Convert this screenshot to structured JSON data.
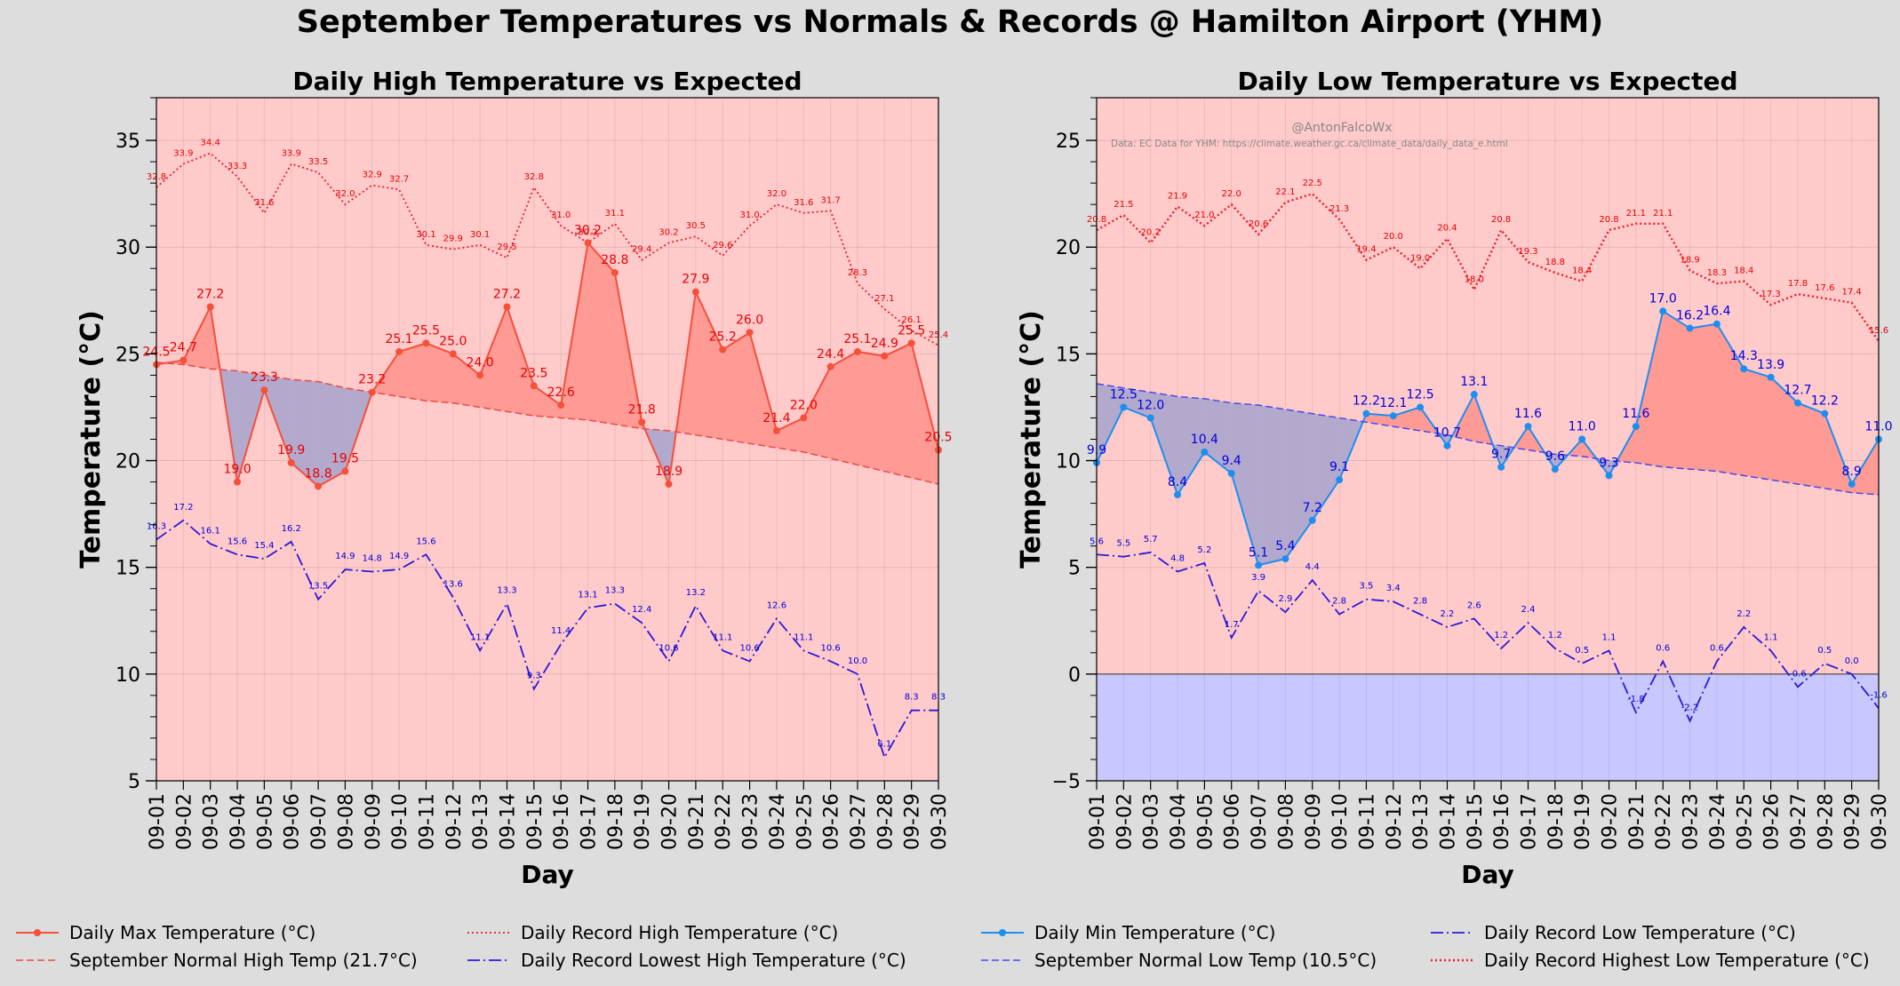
{
  "figure": {
    "suptitle": "September Temperatures vs Normals & Records @ Hamilton Airport (YHM)",
    "watermark": "@AntonFalcoWx",
    "source_note": "Data: EC Data for YHM: https://climate.weather.gc.ca/climate_data/daily_data_e.html"
  },
  "colors": {
    "background": "#dddddd",
    "plot_bg": "#ffcaca",
    "max_line": "#f4503a",
    "min_line": "#1e8ef0",
    "record_high": "#e8202a",
    "record_low": "#2a1ad8",
    "normal_high": "#ea4a4a",
    "normal_low": "#4a4ae8",
    "fill_above": "#ff9a95",
    "fill_below": "#b3a9cd",
    "below_zero": "#c8c8ff",
    "label_red": "#e80000",
    "label_blue": "#0000dd"
  },
  "legend": {
    "left": [
      {
        "label": "Daily Max Temperature (°C)",
        "style": "max"
      },
      {
        "label": "Daily Record High Temperature (°C)",
        "style": "rechigh"
      },
      {
        "label": "September Normal High Temp (21.7°C)",
        "style": "normhigh"
      },
      {
        "label": "Daily Record Lowest High Temperature (°C)",
        "style": "reclow"
      }
    ],
    "right": [
      {
        "label": "Daily Min Temperature (°C)",
        "style": "min"
      },
      {
        "label": "Daily Record Low Temperature (°C)",
        "style": "reclow"
      },
      {
        "label": "September Normal Low Temp (10.5°C)",
        "style": "normlow"
      },
      {
        "label": "Daily Record Highest Low Temperature (°C)",
        "style": "rechighlow"
      }
    ]
  },
  "chart_data": [
    {
      "type": "line",
      "title": "Daily High Temperature vs Expected",
      "xlabel": "Day",
      "ylabel": "Temperature (°C)",
      "ylim": [
        5,
        37
      ],
      "yticks": [
        5,
        10,
        15,
        20,
        25,
        30,
        35
      ],
      "categories": [
        "09-01",
        "09-02",
        "09-03",
        "09-04",
        "09-05",
        "09-06",
        "09-07",
        "09-08",
        "09-09",
        "09-10",
        "09-11",
        "09-12",
        "09-13",
        "09-14",
        "09-15",
        "09-16",
        "09-17",
        "09-18",
        "09-19",
        "09-20",
        "09-21",
        "09-22",
        "09-23",
        "09-24",
        "09-25",
        "09-26",
        "09-27",
        "09-28",
        "09-29",
        "09-30"
      ],
      "series": [
        {
          "name": "Daily Max Temperature (°C)",
          "style": "max",
          "values": [
            24.5,
            24.7,
            27.2,
            19.0,
            23.3,
            19.9,
            18.8,
            19.5,
            23.2,
            25.1,
            25.5,
            25.0,
            24.0,
            27.2,
            23.5,
            22.6,
            30.2,
            28.8,
            21.8,
            18.9,
            27.9,
            25.2,
            26.0,
            21.4,
            22.0,
            24.4,
            25.1,
            24.9,
            25.5,
            20.5
          ]
        },
        {
          "name": "Daily Record High Temperature (°C)",
          "style": "rechigh",
          "values": [
            32.8,
            33.9,
            34.4,
            33.3,
            31.6,
            33.9,
            33.5,
            32.0,
            32.9,
            32.7,
            30.1,
            29.9,
            30.1,
            29.5,
            32.8,
            31.0,
            30.2,
            31.1,
            29.4,
            30.2,
            30.5,
            29.6,
            31.0,
            32.0,
            31.6,
            31.7,
            28.3,
            27.1,
            26.1,
            25.4
          ]
        },
        {
          "name": "September Normal High Temp (21.7°C)",
          "style": "normhigh",
          "values": [
            24.6,
            24.5,
            24.3,
            24.2,
            24.0,
            23.8,
            23.7,
            23.4,
            23.2,
            23.0,
            22.8,
            22.7,
            22.5,
            22.3,
            22.1,
            22.0,
            21.9,
            21.7,
            21.5,
            21.4,
            21.2,
            21.0,
            20.8,
            20.6,
            20.4,
            20.1,
            19.8,
            19.5,
            19.2,
            18.9
          ]
        },
        {
          "name": "Daily Record Lowest High Temperature (°C)",
          "style": "reclow",
          "values": [
            16.3,
            17.2,
            16.1,
            15.6,
            15.4,
            16.2,
            13.5,
            14.9,
            14.8,
            14.9,
            15.6,
            13.6,
            11.1,
            13.3,
            9.3,
            11.4,
            13.1,
            13.3,
            12.4,
            10.6,
            13.2,
            11.1,
            10.6,
            12.6,
            11.1,
            10.6,
            10.0,
            6.1,
            8.3,
            8.3
          ]
        }
      ]
    },
    {
      "type": "line",
      "title": "Daily Low Temperature vs Expected",
      "xlabel": "Day",
      "ylabel": "Temperature (°C)",
      "ylim": [
        -5,
        27
      ],
      "yticks": [
        -5,
        0,
        5,
        10,
        15,
        20,
        25
      ],
      "categories": [
        "09-01",
        "09-02",
        "09-03",
        "09-04",
        "09-05",
        "09-06",
        "09-07",
        "09-08",
        "09-09",
        "09-10",
        "09-11",
        "09-12",
        "09-13",
        "09-14",
        "09-15",
        "09-16",
        "09-17",
        "09-18",
        "09-19",
        "09-20",
        "09-21",
        "09-22",
        "09-23",
        "09-24",
        "09-25",
        "09-26",
        "09-27",
        "09-28",
        "09-29",
        "09-30"
      ],
      "series": [
        {
          "name": "Daily Min Temperature (°C)",
          "style": "min",
          "values": [
            9.9,
            12.5,
            12.0,
            8.4,
            10.4,
            9.4,
            5.1,
            5.4,
            7.2,
            9.1,
            12.2,
            12.1,
            12.5,
            10.7,
            13.1,
            9.7,
            11.6,
            9.6,
            11.0,
            9.3,
            11.6,
            17.0,
            16.2,
            16.4,
            14.3,
            13.9,
            12.7,
            12.2,
            8.9,
            11.0
          ]
        },
        {
          "name": "Daily Record Highest Low Temperature (°C)",
          "style": "rechighlow",
          "values": [
            20.8,
            21.5,
            20.2,
            21.9,
            21.0,
            22.0,
            20.6,
            22.1,
            22.5,
            21.3,
            19.4,
            20.0,
            19.0,
            20.4,
            18.0,
            20.8,
            19.3,
            18.8,
            18.4,
            20.8,
            21.1,
            21.1,
            18.9,
            18.3,
            18.4,
            17.3,
            17.8,
            17.6,
            17.4,
            15.6
          ]
        },
        {
          "name": "September Normal Low Temp (10.5°C)",
          "style": "normlow",
          "values": [
            13.6,
            13.4,
            13.2,
            13.0,
            12.9,
            12.7,
            12.6,
            12.4,
            12.2,
            12.0,
            11.8,
            11.6,
            11.4,
            11.2,
            10.9,
            10.7,
            10.5,
            10.3,
            10.2,
            10.0,
            9.9,
            9.7,
            9.6,
            9.5,
            9.3,
            9.1,
            8.9,
            8.7,
            8.5,
            8.4
          ]
        },
        {
          "name": "Daily Record Low Temperature (°C)",
          "style": "reclow",
          "values": [
            5.6,
            5.5,
            5.7,
            4.8,
            5.2,
            1.7,
            3.9,
            2.9,
            4.4,
            2.8,
            3.5,
            3.4,
            2.8,
            2.2,
            2.6,
            1.2,
            2.4,
            1.2,
            0.5,
            1.1,
            -1.8,
            0.6,
            -2.2,
            0.6,
            2.2,
            1.1,
            -0.6,
            0.5,
            0.0,
            -1.6
          ]
        }
      ]
    }
  ]
}
